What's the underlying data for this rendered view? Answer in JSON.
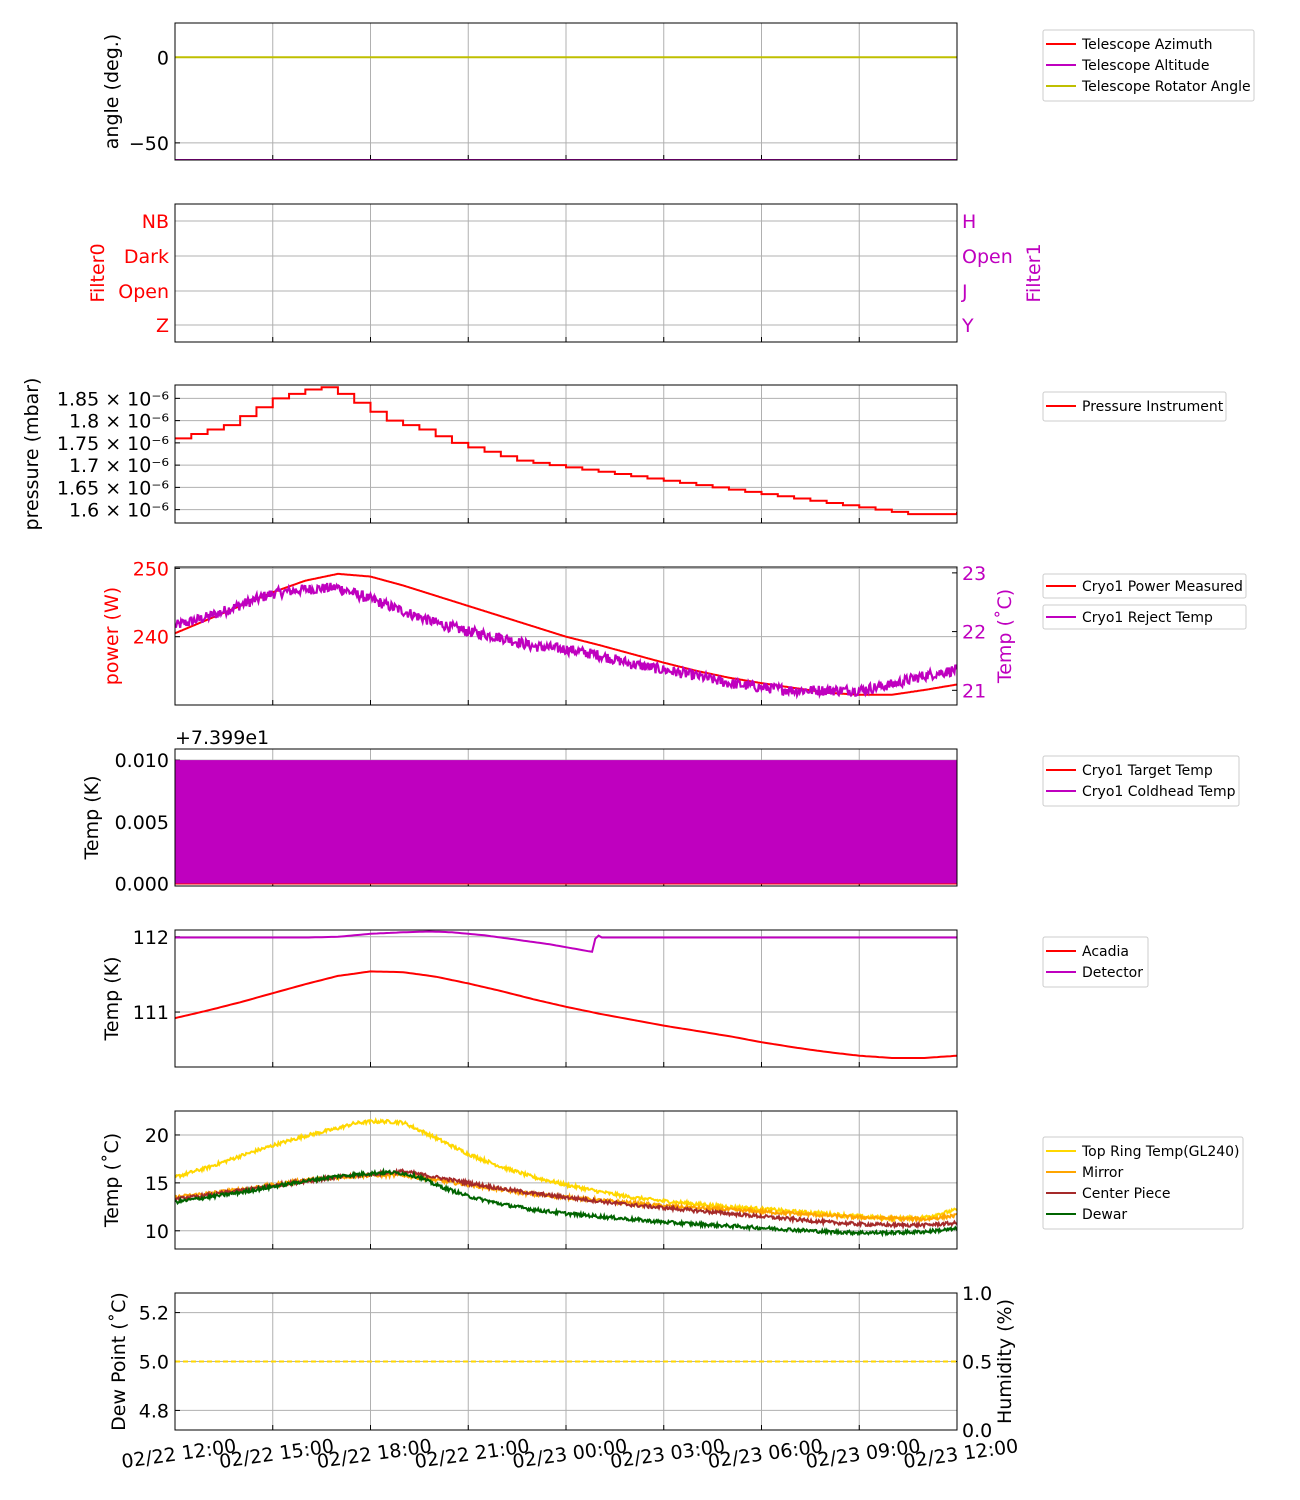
{
  "x_ticks": [
    "02/22 12:00",
    "02/22 15:00",
    "02/22 18:00",
    "02/22 21:00",
    "02/23 00:00",
    "02/23 03:00",
    "02/23 06:00",
    "02/23 09:00",
    "02/23 12:00"
  ],
  "chart_data": [
    {
      "type": "line",
      "ylabel": "angle (deg.)",
      "ylim": [
        -60,
        20
      ],
      "yticks": [
        {
          "v": 0,
          "label": "0"
        },
        {
          "v": -50,
          "label": "−50"
        }
      ],
      "grid": true,
      "legend": "right",
      "series": [
        {
          "name": "Telescope Azimuth",
          "color": "#ff0000",
          "y": [
            -60,
            -60
          ]
        },
        {
          "name": "Telescope Altitude",
          "color": "#bf00bf",
          "y": [
            -60,
            -60
          ]
        },
        {
          "name": "Telescope Rotator Angle",
          "color": "#bfbf00",
          "y": [
            0,
            0
          ]
        }
      ]
    },
    {
      "type": "line",
      "ylabel": "Filter0",
      "ylabel_right": "Filter1",
      "left_color": "#ff0000",
      "right_color": "#bf00bf",
      "left_ticks": [
        "NB",
        "Dark",
        "Open",
        "Z"
      ],
      "right_ticks": [
        "H",
        "Open",
        "J",
        "Y"
      ],
      "grid": true
    },
    {
      "type": "line",
      "ylabel": "pressure (mbar)",
      "ylim": [
        1.57e-06,
        1.88e-06
      ],
      "yticks": [
        {
          "v": 1.85e-06,
          "label": "1.85 × 10⁻⁶"
        },
        {
          "v": 1.8e-06,
          "label": "1.8 × 10⁻⁶"
        },
        {
          "v": 1.75e-06,
          "label": "1.75 × 10⁻⁶"
        },
        {
          "v": 1.7e-06,
          "label": "1.7 × 10⁻⁶"
        },
        {
          "v": 1.65e-06,
          "label": "1.65 × 10⁻⁶"
        },
        {
          "v": 1.6e-06,
          "label": "1.6 × 10⁻⁶"
        }
      ],
      "grid": true,
      "legend": "right",
      "series": [
        {
          "name": "Pressure Instrument",
          "color": "#ff0000",
          "step": true,
          "x": [
            0,
            0.5,
            1,
            1.5,
            2,
            2.5,
            3,
            3.5,
            4,
            4.5,
            5,
            5.5,
            6,
            6.5,
            7,
            7.5,
            8,
            8.5,
            9,
            9.5,
            10,
            10.5,
            11,
            11.5,
            12,
            12.5,
            13,
            13.5,
            14,
            14.5,
            15,
            15.5,
            16,
            16.5,
            17,
            17.5,
            18,
            18.5,
            19,
            19.5,
            20,
            20.5,
            21,
            21.5,
            22,
            22.5,
            23,
            23.5,
            24
          ],
          "y": [
            1.76e-06,
            1.77e-06,
            1.78e-06,
            1.79e-06,
            1.81e-06,
            1.83e-06,
            1.85e-06,
            1.86e-06,
            1.87e-06,
            1.875e-06,
            1.86e-06,
            1.84e-06,
            1.82e-06,
            1.8e-06,
            1.79e-06,
            1.78e-06,
            1.765e-06,
            1.75e-06,
            1.74e-06,
            1.73e-06,
            1.72e-06,
            1.71e-06,
            1.705e-06,
            1.7e-06,
            1.695e-06,
            1.69e-06,
            1.685e-06,
            1.68e-06,
            1.675e-06,
            1.67e-06,
            1.665e-06,
            1.66e-06,
            1.655e-06,
            1.65e-06,
            1.645e-06,
            1.64e-06,
            1.635e-06,
            1.63e-06,
            1.625e-06,
            1.62e-06,
            1.615e-06,
            1.61e-06,
            1.605e-06,
            1.6e-06,
            1.595e-06,
            1.59e-06,
            1.59e-06,
            1.59e-06,
            1.595e-06
          ]
        }
      ]
    },
    {
      "type": "line",
      "ylabel": "power (W)",
      "ylabel_right": "Temp (˚C)",
      "left_color": "#ff0000",
      "right_color": "#bf00bf",
      "ylim": [
        230,
        250.2
      ],
      "ylim_right": [
        20.75,
        23.1
      ],
      "yticks": [
        {
          "v": 250,
          "label": "250"
        },
        {
          "v": 240,
          "label": "240"
        }
      ],
      "yticks_right": [
        {
          "v": 23,
          "label": "23"
        },
        {
          "v": 22,
          "label": "22"
        },
        {
          "v": 21,
          "label": "21"
        }
      ],
      "grid": true,
      "legend": "right",
      "series": [
        {
          "name": "Cryo1 Power Measured",
          "color": "#ff0000",
          "axis": "left",
          "x": [
            0,
            1,
            2,
            3,
            4,
            5,
            6,
            7,
            8,
            9,
            10,
            11,
            12,
            13,
            14,
            15,
            16,
            17,
            18,
            19,
            20,
            21,
            22,
            23,
            24
          ],
          "y": [
            240.5,
            242.5,
            244.5,
            246.5,
            248.2,
            249.2,
            248.8,
            247.5,
            246,
            244.5,
            243,
            241.5,
            240,
            238.8,
            237.5,
            236.2,
            235,
            234,
            233.2,
            232.5,
            231.8,
            231.5,
            231.5,
            232.2,
            233
          ]
        },
        {
          "name": "Cryo1 Reject Temp",
          "color": "#bf00bf",
          "axis": "right",
          "x": [
            0,
            1,
            2,
            3,
            4,
            5,
            6,
            7,
            8,
            9,
            10,
            11,
            12,
            13,
            14,
            15,
            16,
            17,
            18,
            19,
            20,
            21,
            22,
            23,
            24
          ],
          "y": [
            22.1,
            22.25,
            22.45,
            22.65,
            22.72,
            22.75,
            22.55,
            22.35,
            22.15,
            22.0,
            21.9,
            21.75,
            21.7,
            21.6,
            21.45,
            21.35,
            21.25,
            21.12,
            21.05,
            21.0,
            21.0,
            21.0,
            21.1,
            21.25,
            21.35
          ]
        }
      ]
    },
    {
      "type": "line",
      "ylabel": "Temp (K)",
      "offset_label": "+7.399e1",
      "ylim": [
        -0.0002,
        0.0109
      ],
      "yticks": [
        {
          "v": 0.01,
          "label": "0.010"
        },
        {
          "v": 0.005,
          "label": "0.005"
        },
        {
          "v": 0,
          "label": "0.000"
        }
      ],
      "grid": true,
      "legend": "right",
      "series": [
        {
          "name": "Cryo1 Target Temp",
          "color": "#ff0000",
          "y": [
            0,
            0
          ]
        },
        {
          "name": "Cryo1 Coldhead Temp",
          "color": "#bf00bf",
          "band": [
            0,
            0.01
          ]
        }
      ]
    },
    {
      "type": "line",
      "ylabel": "Temp (K)",
      "ylim": [
        110.27,
        112.09
      ],
      "yticks": [
        {
          "v": 112,
          "label": "112"
        },
        {
          "v": 111,
          "label": "111"
        }
      ],
      "grid": true,
      "legend": "right",
      "series": [
        {
          "name": "Acadia",
          "color": "#ff0000",
          "x": [
            0,
            1,
            2,
            3,
            4,
            5,
            6,
            7,
            8,
            9,
            10,
            11,
            12,
            13,
            14,
            15,
            16,
            17,
            18,
            19,
            20,
            21,
            22,
            23,
            24
          ],
          "y": [
            110.92,
            111.02,
            111.13,
            111.25,
            111.37,
            111.48,
            111.54,
            111.53,
            111.47,
            111.38,
            111.28,
            111.17,
            111.07,
            110.98,
            110.9,
            110.82,
            110.75,
            110.68,
            110.6,
            110.53,
            110.47,
            110.42,
            110.39,
            110.39,
            110.42
          ]
        },
        {
          "name": "Detector",
          "color": "#bf00bf",
          "x": [
            0,
            2,
            4,
            5,
            6,
            7,
            7.8,
            8.5,
            9.5,
            10.5,
            11.5,
            12.8,
            12.85,
            12.95,
            13.05,
            14,
            16,
            18,
            20,
            22,
            24
          ],
          "y": [
            111.99,
            111.99,
            111.99,
            112.0,
            112.04,
            112.06,
            112.07,
            112.06,
            112.02,
            111.96,
            111.9,
            111.8,
            111.91,
            112.04,
            111.99,
            111.99,
            111.99,
            111.99,
            111.99,
            111.99,
            111.99
          ]
        }
      ]
    },
    {
      "type": "line",
      "ylabel": "Temp (˚C)",
      "ylim": [
        8.1,
        22.5
      ],
      "yticks": [
        {
          "v": 20,
          "label": "20"
        },
        {
          "v": 15,
          "label": "15"
        },
        {
          "v": 10,
          "label": "10"
        }
      ],
      "grid": true,
      "legend": "right",
      "series": [
        {
          "name": "Top Ring Temp(GL240)",
          "color": "#ffd700",
          "x": [
            0,
            1,
            2,
            3,
            4,
            5,
            5.5,
            6,
            6.5,
            7,
            8,
            9,
            10,
            11,
            12,
            13,
            14,
            15,
            16,
            17,
            18,
            19,
            20,
            21,
            22,
            23,
            24
          ],
          "y": [
            15.6,
            16.6,
            17.8,
            18.9,
            19.9,
            20.7,
            21.2,
            21.4,
            21.4,
            21.3,
            19.7,
            18.0,
            16.7,
            15.6,
            14.8,
            14.1,
            13.5,
            13.1,
            12.8,
            12.5,
            12.3,
            12.0,
            11.8,
            11.5,
            11.3,
            11.4,
            12.2
          ]
        },
        {
          "name": "Mirror",
          "color": "#ffa500",
          "x": [
            0,
            1,
            2,
            3,
            4,
            5,
            6,
            7,
            8,
            9,
            10,
            11,
            12,
            13,
            14,
            15,
            16,
            17,
            18,
            19,
            20,
            21,
            22,
            23,
            24
          ],
          "y": [
            13.5,
            13.9,
            14.3,
            14.8,
            15.3,
            15.6,
            15.8,
            15.8,
            15.3,
            14.8,
            14.3,
            13.8,
            13.5,
            13.2,
            12.9,
            12.6,
            12.4,
            12.2,
            12.0,
            11.8,
            11.6,
            11.4,
            11.3,
            11.2,
            11.6
          ]
        },
        {
          "name": "Center Piece",
          "color": "#a52a2a",
          "x": [
            0,
            1,
            2,
            3,
            4,
            5,
            6,
            7,
            8,
            9,
            10,
            11,
            12,
            13,
            14,
            15,
            16,
            17,
            18,
            19,
            20,
            21,
            22,
            23,
            24
          ],
          "y": [
            13.3,
            13.7,
            14.2,
            14.7,
            15.2,
            15.6,
            15.9,
            16.2,
            15.6,
            15.0,
            14.4,
            13.9,
            13.5,
            13.1,
            12.7,
            12.4,
            12.1,
            11.8,
            11.5,
            11.2,
            10.9,
            10.7,
            10.6,
            10.6,
            10.8
          ]
        },
        {
          "name": "Dewar",
          "color": "#006400",
          "x": [
            0,
            1,
            2,
            3,
            4,
            5,
            6,
            6.5,
            7,
            7.5,
            8,
            9,
            10,
            11,
            12,
            13,
            14,
            15,
            16,
            17,
            18,
            19,
            20,
            21,
            22,
            23,
            24
          ],
          "y": [
            13.0,
            13.5,
            14.0,
            14.6,
            15.2,
            15.7,
            16.0,
            16.1,
            16.0,
            15.6,
            14.8,
            13.6,
            12.8,
            12.2,
            11.8,
            11.5,
            11.2,
            10.9,
            10.7,
            10.5,
            10.3,
            10.1,
            9.9,
            9.8,
            9.8,
            9.9,
            10.2
          ]
        }
      ]
    },
    {
      "type": "line",
      "ylabel": "Dew Point (˚C)",
      "ylabel_right": "Humidity (%)",
      "ylim": [
        4.72,
        5.28
      ],
      "ylim_right": [
        0,
        1
      ],
      "yticks": [
        {
          "v": 5.2,
          "label": "5.2"
        },
        {
          "v": 5.0,
          "label": "5.0"
        },
        {
          "v": 4.8,
          "label": "4.8"
        }
      ],
      "yticks_right": [
        {
          "v": 1.0,
          "label": "1.0"
        },
        {
          "v": 0.5,
          "label": "0.5"
        },
        {
          "v": 0.0,
          "label": "0.0"
        }
      ],
      "grid": true,
      "series": [
        {
          "color": "#ffd700",
          "dashed": true,
          "y": [
            5.0,
            5.0
          ]
        }
      ]
    }
  ]
}
